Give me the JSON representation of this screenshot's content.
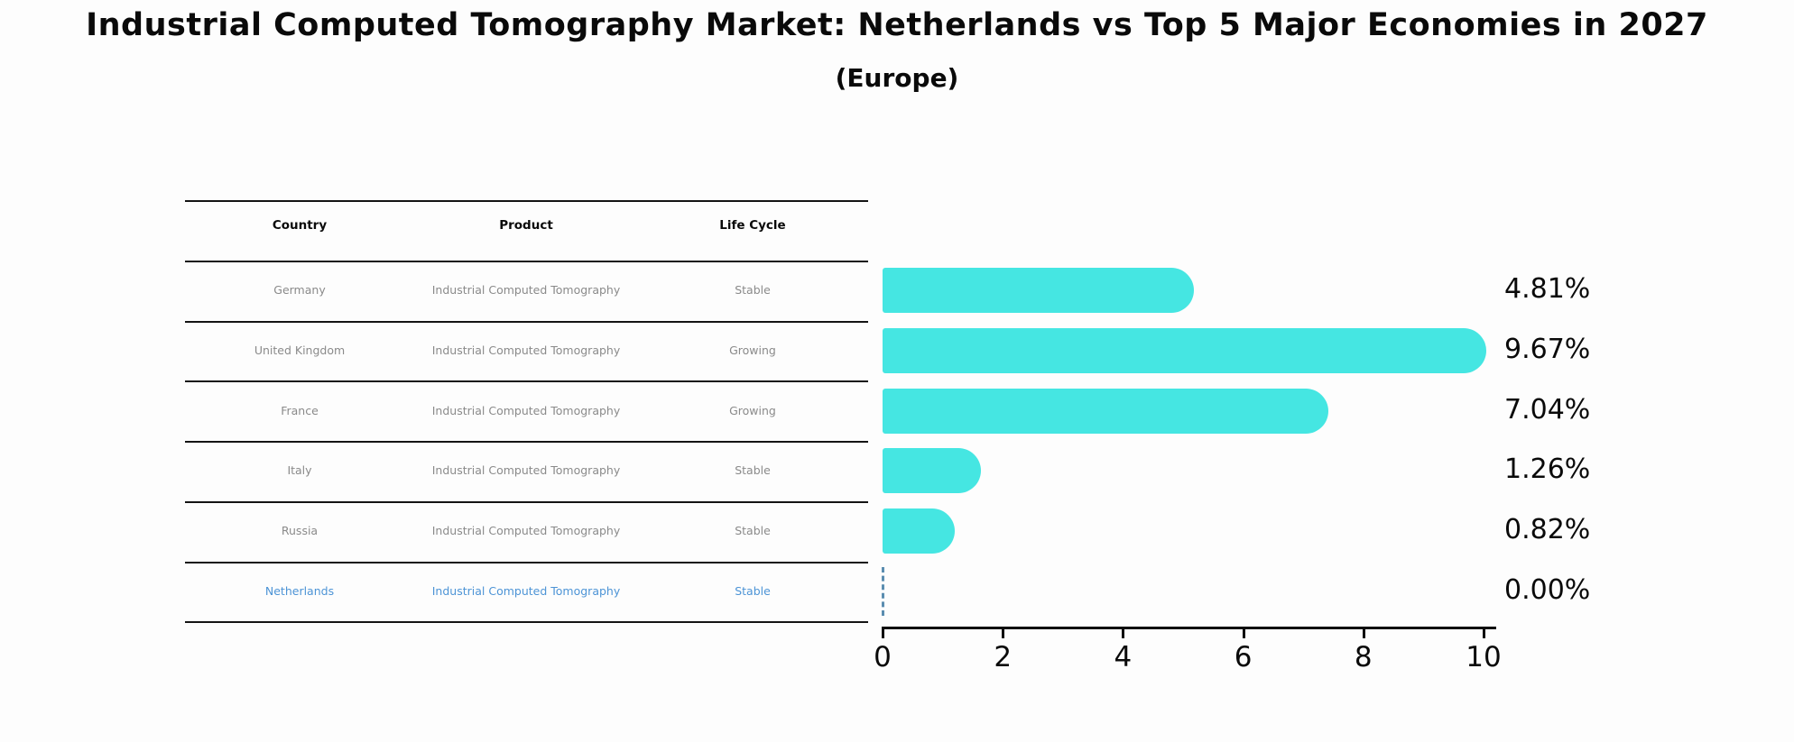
{
  "header": {
    "title": "Industrial Computed Tomography Market: Netherlands vs Top 5 Major Economies in 2027",
    "subtitle": "(Europe)"
  },
  "table": {
    "headers": [
      "Country",
      "Product",
      "Life Cycle"
    ],
    "rows": [
      {
        "country": "Germany",
        "product": "Industrial Computed Tomography",
        "life_cycle": "Stable",
        "highlighted": false
      },
      {
        "country": "United Kingdom",
        "product": "Industrial Computed Tomography",
        "life_cycle": "Growing",
        "highlighted": false
      },
      {
        "country": "France",
        "product": "Industrial Computed Tomography",
        "life_cycle": "Growing",
        "highlighted": false
      },
      {
        "country": "Italy",
        "product": "Industrial Computed Tomography",
        "life_cycle": "Stable",
        "highlighted": false
      },
      {
        "country": "Russia",
        "product": "Industrial Computed Tomography",
        "life_cycle": "Stable",
        "highlighted": false
      },
      {
        "country": "Netherlands",
        "product": "Industrial Computed Tomography",
        "life_cycle": "Stable",
        "highlighted": true
      }
    ]
  },
  "chart_data": {
    "type": "bar",
    "orientation": "horizontal",
    "title": "Industrial Computed Tomography Market: Netherlands vs Top 5 Major Economies in 2027 (Europe)",
    "categories": [
      "Germany",
      "United Kingdom",
      "France",
      "Italy",
      "Russia",
      "Netherlands"
    ],
    "values": [
      4.81,
      9.67,
      7.04,
      1.26,
      0.82,
      0.0
    ],
    "value_labels": [
      "4.81%",
      "9.67%",
      "7.04%",
      "1.26%",
      "0.82%",
      "0.00%"
    ],
    "x_ticks": [
      "0",
      "2",
      "4",
      "6",
      "8",
      "10"
    ],
    "xlim": [
      0,
      10
    ],
    "grid": false,
    "legend": "none",
    "bar_color": "#45e6e2",
    "highlight_style": "dashed-outline-at-zero",
    "highlight_color": "#5b8db0"
  },
  "colors": {
    "background": "#fdfdfd",
    "bar": "#45e6e2",
    "row_text": "#8a8a8a",
    "highlight_text": "#4d94d6",
    "highlight_dash": "#5b8db0",
    "axis": "#0a0a0a"
  }
}
